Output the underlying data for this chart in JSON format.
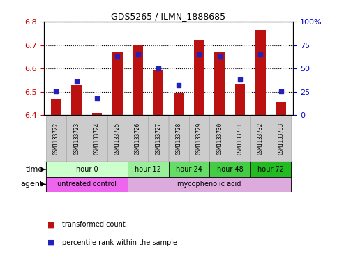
{
  "title": "GDS5265 / ILMN_1888685",
  "samples": [
    "GSM1133722",
    "GSM1133723",
    "GSM1133724",
    "GSM1133725",
    "GSM1133726",
    "GSM1133727",
    "GSM1133728",
    "GSM1133729",
    "GSM1133730",
    "GSM1133731",
    "GSM1133732",
    "GSM1133733"
  ],
  "transformed_count": [
    6.47,
    6.53,
    6.41,
    6.67,
    6.7,
    6.595,
    6.495,
    6.72,
    6.67,
    6.535,
    6.765,
    6.455
  ],
  "percentile_rank": [
    26,
    36,
    18,
    63,
    65,
    50,
    32,
    65,
    63,
    38,
    65,
    26
  ],
  "ylim_left": [
    6.4,
    6.8
  ],
  "ylim_right": [
    0,
    100
  ],
  "yticks_left": [
    6.4,
    6.5,
    6.6,
    6.7,
    6.8
  ],
  "yticks_right": [
    0,
    25,
    50,
    75,
    100
  ],
  "bar_color": "#bb1111",
  "dot_color": "#2222bb",
  "bar_bottom": 6.4,
  "time_groups": [
    {
      "label": "hour 0",
      "start": 0,
      "end": 3,
      "color": "#ccffcc"
    },
    {
      "label": "hour 12",
      "start": 4,
      "end": 5,
      "color": "#99ee99"
    },
    {
      "label": "hour 24",
      "start": 6,
      "end": 7,
      "color": "#66dd66"
    },
    {
      "label": "hour 48",
      "start": 8,
      "end": 9,
      "color": "#44cc44"
    },
    {
      "label": "hour 72",
      "start": 10,
      "end": 11,
      "color": "#22bb22"
    }
  ],
  "agent_groups": [
    {
      "label": "untreated control",
      "start": 0,
      "end": 3,
      "color": "#ee66ee"
    },
    {
      "label": "mycophenolic acid",
      "start": 4,
      "end": 11,
      "color": "#ddaadd"
    }
  ],
  "legend_bar_label": "transformed count",
  "legend_dot_label": "percentile rank within the sample",
  "time_label": "time",
  "agent_label": "agent",
  "bar_width": 0.5,
  "dot_size": 25,
  "tick_color_left": "#cc0000",
  "tick_color_right": "#0000cc",
  "sample_box_color": "#cccccc",
  "sample_box_border": "#aaaaaa"
}
